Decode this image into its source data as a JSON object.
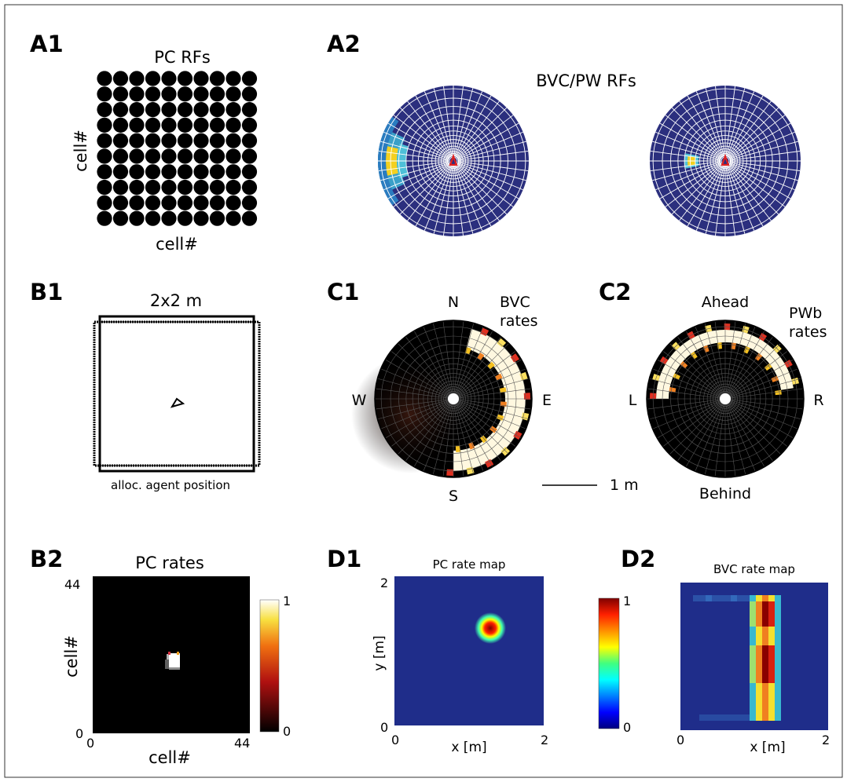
{
  "labels": {
    "a1": "A1",
    "a2": "A2",
    "b1": "B1",
    "b2": "B2",
    "c1": "C1",
    "c2": "C2",
    "d1": "D1",
    "d2": "D2"
  },
  "a1": {
    "title": "PC RFs",
    "ylabel": "cell#",
    "xlabel": "cell#",
    "grid_rows": 10,
    "grid_cols": 10
  },
  "a2": {
    "title": "BVC/PW RFs"
  },
  "b1": {
    "title": "2x2 m",
    "caption": "alloc. agent position"
  },
  "c1": {
    "n": "N",
    "s": "S",
    "e": "E",
    "w": "W",
    "rates_line1": "BVC",
    "rates_line2": "rates"
  },
  "c2": {
    "ahead": "Ahead",
    "behind": "Behind",
    "left": "L",
    "right": "R",
    "rates_line1": "PWb",
    "rates_line2": "rates"
  },
  "scalebar": {
    "label": "1 m"
  },
  "b2": {
    "title": "PC rates",
    "ylabel": "cell#",
    "xlabel": "cell#",
    "x_min": "0",
    "x_max": "44",
    "y_min": "0",
    "y_max": "44",
    "cbar_max": "1",
    "cbar_min": "0"
  },
  "d1": {
    "title": "PC rate map",
    "ylabel": "y [m]",
    "xlabel": "x [m]",
    "x_min": "0",
    "x_max": "2",
    "y_min": "0",
    "y_max": "2"
  },
  "colorbar_jet": {
    "max": "1",
    "min": "0"
  },
  "d2": {
    "title": "BVC rate map",
    "xlabel": "x [m]",
    "x_min": "0",
    "x_max": "2"
  },
  "colors": {
    "jet_background": "#1f2d8a",
    "polar_background": "#2b2f7e",
    "agent_marker": "#e02020"
  }
}
